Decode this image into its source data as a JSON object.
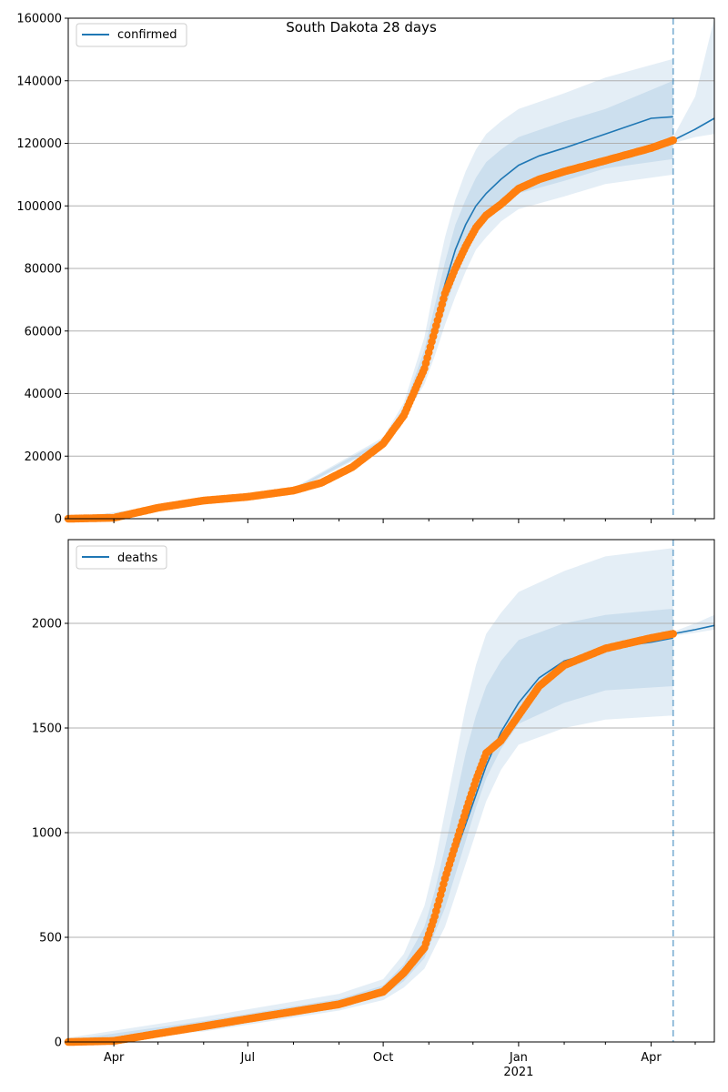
{
  "figure": {
    "title": "South Dakota 28 days",
    "x_ticks": [
      "Apr",
      "Jul",
      "Oct",
      "Jan",
      "Apr"
    ],
    "x_year_label": "2021"
  },
  "colors": {
    "model_line": "#1f77b4",
    "band": "#1f77b4",
    "observed": "#ff7f0e",
    "forecast_date_line": "#1f77b4",
    "grid": "#b0b0b0"
  },
  "chart_data": [
    {
      "type": "line",
      "title": "South Dakota 28 days",
      "legend": "top-left",
      "grid": "horizontal",
      "xlim": [
        "2020-03-01",
        "2021-05-14"
      ],
      "ylim": [
        0,
        160000
      ],
      "y_ticks": [
        "0",
        "20000",
        "40000",
        "60000",
        "80000",
        "100000",
        "120000",
        "140000",
        "160000"
      ],
      "forecast_start": "2021-04-16",
      "series": [
        {
          "name": "confirmed",
          "kind": "model-line",
          "x": [
            "2020-03-01",
            "2020-04-01",
            "2020-05-01",
            "2020-06-01",
            "2020-07-01",
            "2020-08-01",
            "2020-08-20",
            "2020-09-10",
            "2020-10-01",
            "2020-10-15",
            "2020-10-29",
            "2020-11-05",
            "2020-11-12",
            "2020-11-19",
            "2020-11-26",
            "2020-12-03",
            "2020-12-10",
            "2020-12-20",
            "2021-01-01",
            "2021-01-15",
            "2021-02-01",
            "2021-03-01",
            "2021-04-01",
            "2021-04-16"
          ],
          "y": [
            0,
            500,
            3500,
            5800,
            7200,
            9200,
            11500,
            17000,
            24500,
            34000,
            50000,
            62000,
            75000,
            86000,
            94000,
            100000,
            104000,
            108500,
            113000,
            116000,
            118500,
            123000,
            128000,
            128500
          ]
        },
        {
          "name": "",
          "kind": "observed",
          "x": [
            "2020-03-01",
            "2020-04-01",
            "2020-05-01",
            "2020-06-01",
            "2020-07-01",
            "2020-08-01",
            "2020-08-20",
            "2020-09-10",
            "2020-10-01",
            "2020-10-15",
            "2020-10-29",
            "2020-11-05",
            "2020-11-12",
            "2020-11-19",
            "2020-11-26",
            "2020-12-03",
            "2020-12-10",
            "2020-12-20",
            "2021-01-01",
            "2021-01-15",
            "2021-02-01",
            "2021-03-01",
            "2021-04-01",
            "2021-04-16"
          ],
          "y": [
            0,
            300,
            3500,
            5800,
            7000,
            9000,
            11500,
            16500,
            24000,
            33000,
            48000,
            60000,
            72000,
            80000,
            87000,
            93000,
            97000,
            100500,
            105500,
            108500,
            111000,
            114500,
            118500,
            121000
          ]
        },
        {
          "name": "",
          "kind": "forecast",
          "x": [
            "2021-04-16",
            "2021-05-01",
            "2021-05-14"
          ],
          "y": [
            121000,
            124500,
            128000
          ]
        }
      ],
      "bands": [
        {
          "x": [
            "2020-03-01",
            "2020-08-01",
            "2020-10-01",
            "2020-10-15",
            "2020-10-29",
            "2020-11-05",
            "2020-11-12",
            "2020-11-19",
            "2020-11-26",
            "2020-12-03",
            "2020-12-10",
            "2020-12-20",
            "2021-01-01",
            "2021-02-01",
            "2021-03-01",
            "2021-04-16"
          ],
          "upper": [
            0,
            9800,
            26000,
            37000,
            58000,
            75000,
            90000,
            102000,
            111000,
            118000,
            123000,
            127000,
            131000,
            136000,
            141000,
            147000
          ],
          "lower": [
            0,
            8500,
            23500,
            32000,
            43000,
            52000,
            62000,
            71000,
            79000,
            86000,
            90000,
            95000,
            99000,
            103000,
            107000,
            110000
          ]
        },
        {
          "x": [
            "2020-03-01",
            "2020-08-01",
            "2020-10-01",
            "2020-10-15",
            "2020-10-29",
            "2020-11-05",
            "2020-11-12",
            "2020-11-19",
            "2020-11-26",
            "2020-12-03",
            "2020-12-10",
            "2020-12-20",
            "2021-01-01",
            "2021-02-01",
            "2021-03-01",
            "2021-04-16"
          ],
          "upper": [
            0,
            9500,
            25300,
            35500,
            54000,
            68000,
            82000,
            94000,
            102000,
            109000,
            114000,
            118000,
            122000,
            127000,
            131000,
            140000
          ],
          "lower": [
            0,
            8800,
            24000,
            33000,
            46000,
            56000,
            67000,
            77000,
            85000,
            92000,
            96000,
            100000,
            104000,
            108000,
            112000,
            115000
          ]
        },
        {
          "x": [
            "2021-04-16",
            "2021-05-01",
            "2021-05-14"
          ],
          "upper": [
            122000,
            135000,
            160000
          ],
          "lower": [
            120000,
            122000,
            123000
          ]
        }
      ]
    },
    {
      "type": "line",
      "title": "",
      "legend": "top-left",
      "grid": "horizontal",
      "xlim": [
        "2020-03-01",
        "2021-05-14"
      ],
      "ylim": [
        0,
        2400
      ],
      "y_ticks": [
        "0",
        "500",
        "1000",
        "1500",
        "2000"
      ],
      "forecast_start": "2021-04-16",
      "series": [
        {
          "name": "deaths",
          "kind": "model-line",
          "x": [
            "2020-03-01",
            "2020-04-01",
            "2020-05-01",
            "2020-06-01",
            "2020-07-01",
            "2020-08-01",
            "2020-09-01",
            "2020-10-01",
            "2020-10-15",
            "2020-10-29",
            "2020-11-05",
            "2020-11-12",
            "2020-11-19",
            "2020-11-26",
            "2020-12-03",
            "2020-12-10",
            "2020-12-20",
            "2021-01-01",
            "2021-01-15",
            "2021-02-01",
            "2021-03-01",
            "2021-04-01",
            "2021-04-16"
          ],
          "y": [
            0,
            0,
            30,
            75,
            110,
            150,
            180,
            240,
            330,
            470,
            600,
            760,
            900,
            1040,
            1180,
            1320,
            1480,
            1620,
            1740,
            1820,
            1880,
            1910,
            1930
          ]
        },
        {
          "name": "",
          "kind": "observed",
          "x": [
            "2020-03-01",
            "2020-04-01",
            "2020-05-01",
            "2020-06-01",
            "2020-07-01",
            "2020-08-01",
            "2020-09-01",
            "2020-10-01",
            "2020-10-15",
            "2020-10-29",
            "2020-11-05",
            "2020-11-12",
            "2020-11-19",
            "2020-11-26",
            "2020-12-03",
            "2020-12-10",
            "2020-12-20",
            "2021-01-01",
            "2021-01-15",
            "2021-02-01",
            "2021-03-01",
            "2021-04-01",
            "2021-04-16"
          ],
          "y": [
            0,
            5,
            40,
            75,
            110,
            145,
            180,
            240,
            330,
            450,
            600,
            780,
            940,
            1100,
            1250,
            1380,
            1440,
            1560,
            1700,
            1800,
            1880,
            1930,
            1950
          ]
        },
        {
          "name": "",
          "kind": "forecast",
          "x": [
            "2021-04-16",
            "2021-05-01",
            "2021-05-14"
          ],
          "y": [
            1950,
            1970,
            1990
          ]
        }
      ],
      "bands": [
        {
          "x": [
            "2020-03-01",
            "2020-06-01",
            "2020-09-01",
            "2020-10-01",
            "2020-10-15",
            "2020-10-29",
            "2020-11-05",
            "2020-11-12",
            "2020-11-19",
            "2020-11-26",
            "2020-12-03",
            "2020-12-10",
            "2020-12-20",
            "2021-01-01",
            "2021-02-01",
            "2021-03-01",
            "2021-04-16"
          ],
          "upper": [
            20,
            120,
            230,
            300,
            420,
            650,
            850,
            1100,
            1350,
            1600,
            1800,
            1950,
            2050,
            2150,
            2250,
            2320,
            2360
          ],
          "lower": [
            0,
            50,
            150,
            200,
            260,
            350,
            450,
            550,
            700,
            850,
            1000,
            1150,
            1300,
            1420,
            1500,
            1540,
            1560
          ]
        },
        {
          "x": [
            "2020-03-01",
            "2020-06-01",
            "2020-09-01",
            "2020-10-01",
            "2020-10-15",
            "2020-10-29",
            "2020-11-05",
            "2020-11-12",
            "2020-11-19",
            "2020-11-26",
            "2020-12-03",
            "2020-12-10",
            "2020-12-20",
            "2021-01-01",
            "2021-02-01",
            "2021-03-01",
            "2021-04-16"
          ],
          "upper": [
            10,
            100,
            205,
            270,
            370,
            550,
            720,
            930,
            1150,
            1380,
            1560,
            1700,
            1820,
            1920,
            2000,
            2040,
            2070
          ],
          "lower": [
            0,
            60,
            165,
            220,
            290,
            400,
            520,
            640,
            800,
            960,
            1120,
            1260,
            1400,
            1520,
            1620,
            1680,
            1700
          ]
        },
        {
          "x": [
            "2021-04-16",
            "2021-05-01",
            "2021-05-14"
          ],
          "upper": [
            1960,
            2000,
            2040
          ],
          "lower": [
            1940,
            1955,
            1970
          ]
        }
      ]
    }
  ]
}
